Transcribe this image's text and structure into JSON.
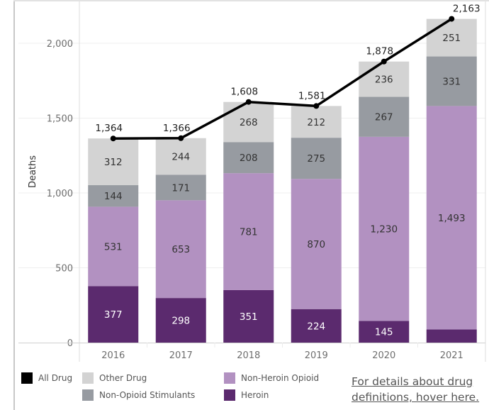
{
  "chart_data": {
    "type": "bar",
    "stacked": true,
    "categories": [
      "2016",
      "2017",
      "2018",
      "2019",
      "2020",
      "2021"
    ],
    "series": [
      {
        "name": "Heroin",
        "color": "#5b2a6e",
        "label_color": "#ffffff",
        "values": [
          377,
          298,
          351,
          224,
          145,
          88
        ],
        "labels": [
          "377",
          "298",
          "351",
          "224",
          "145",
          ""
        ]
      },
      {
        "name": "Non-Heroin Opioid",
        "color": "#b291c1",
        "label_color": "#333333",
        "values": [
          531,
          653,
          781,
          870,
          1230,
          1493
        ],
        "labels": [
          "531",
          "653",
          "781",
          "870",
          "1,230",
          "1,493"
        ]
      },
      {
        "name": "Non-Opioid Stimulants",
        "color": "#979ba1",
        "label_color": "#333333",
        "values": [
          144,
          171,
          208,
          275,
          267,
          331
        ],
        "labels": [
          "144",
          "171",
          "208",
          "275",
          "267",
          "331"
        ]
      },
      {
        "name": "Other Drug",
        "color": "#d3d3d3",
        "label_color": "#333333",
        "values": [
          312,
          244,
          268,
          212,
          236,
          251
        ],
        "labels": [
          "312",
          "244",
          "268",
          "212",
          "236",
          "251"
        ]
      }
    ],
    "line": {
      "name": "All Drug",
      "color": "#000000",
      "values": [
        1364,
        1366,
        1608,
        1581,
        1878,
        2163
      ],
      "labels": [
        "1,364",
        "1,366",
        "1,608",
        "1,581",
        "1,878",
        "2,163"
      ]
    },
    "title": "",
    "xlabel": "",
    "ylabel": "Deaths",
    "ylim": [
      0,
      2200
    ],
    "yticks": [
      0,
      500,
      1000,
      1500,
      2000
    ],
    "ytick_labels": [
      "0",
      "500",
      "1,000",
      "1,500",
      "2,000"
    ],
    "grid": true,
    "legend_position": "bottom"
  },
  "legend": {
    "items": [
      {
        "label": "All Drug",
        "color": "#000000"
      },
      {
        "label": "Other Drug",
        "color": "#d3d3d3"
      },
      {
        "label": "Non-Heroin Opioid",
        "color": "#b291c1"
      },
      {
        "label": "Non-Opioid Stimulants",
        "color": "#979ba1"
      },
      {
        "label": "Heroin",
        "color": "#5b2a6e"
      }
    ]
  },
  "details_link": "For details about drug definitions, hover here."
}
